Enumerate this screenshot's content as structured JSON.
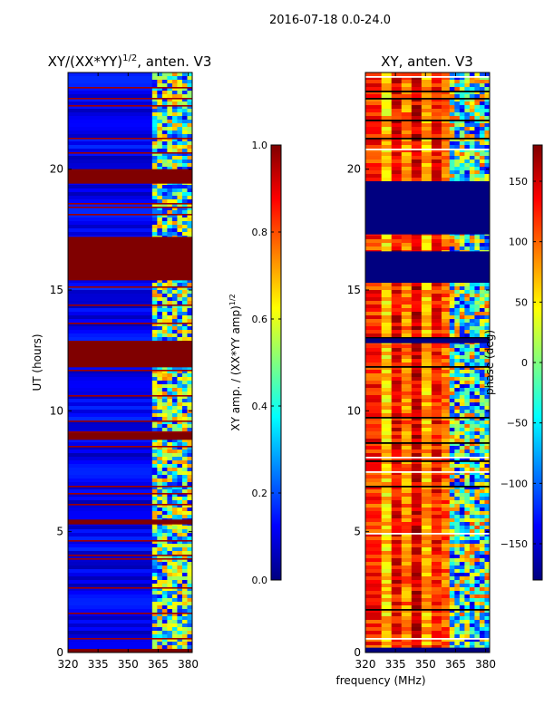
{
  "figure": {
    "suptitle": "2016-07-18 0.0-24.0",
    "shared_xlabel": "frequency (MHz)"
  },
  "chart_data": [
    {
      "type": "heatmap",
      "title_main": "XY/(XX*YY)",
      "title_sup": "1/2",
      "title_tail": ", anten. V3",
      "xlabel": "",
      "ylabel": "UT (hours)",
      "xlim": [
        320,
        382
      ],
      "ylim": [
        0,
        24
      ],
      "xticks": [
        320,
        335,
        350,
        365,
        380
      ],
      "yticks": [
        0,
        5,
        10,
        15,
        20
      ],
      "colorbar": {
        "label_main": "XY amp. / (XX*YY amp)",
        "label_sup": "1/2",
        "range": [
          0.0,
          1.0
        ],
        "ticks": [
          "0.0",
          "0.2",
          "0.4",
          "0.6",
          "0.8",
          "1.0"
        ],
        "tick_values": [
          0.0,
          0.2,
          0.4,
          0.6,
          0.8,
          1.0
        ],
        "colormap": "jet"
      },
      "saturated_bands_ut": [
        [
          19.4,
          20.0
        ],
        [
          16.8,
          17.2
        ],
        [
          15.4,
          16.8
        ],
        [
          11.8,
          12.9
        ],
        [
          8.8,
          9.1
        ],
        [
          5.3,
          5.5
        ],
        [
          0.0,
          0.15
        ]
      ],
      "bright_region_mhz": [
        362,
        382
      ],
      "background_value": 0.1,
      "bright_value": 0.5
    },
    {
      "type": "heatmap",
      "title_main": "XY, anten. V3",
      "xlabel": "frequency (MHz)",
      "ylabel": "",
      "xlim": [
        320,
        382
      ],
      "ylim": [
        0,
        24
      ],
      "xticks": [
        320,
        335,
        350,
        365,
        380
      ],
      "yticks": [
        0,
        5,
        10,
        15,
        20
      ],
      "colorbar": {
        "label_main": "phase (deg)",
        "range": [
          -180,
          180
        ],
        "ticks": [
          "−150",
          "−100",
          "−50",
          "0",
          "50",
          "100",
          "150"
        ],
        "tick_values": [
          -150,
          -100,
          -50,
          0,
          50,
          100,
          150
        ],
        "colormap": "jet"
      },
      "masked_bands_ut": [
        [
          17.3,
          19.5
        ],
        [
          15.3,
          16.6
        ],
        [
          12.8,
          13.0
        ],
        [
          0.0,
          0.2
        ]
      ],
      "phase_stripes_mhz": [
        {
          "from": 320,
          "to": 328,
          "value": 120
        },
        {
          "from": 328,
          "to": 333,
          "value": 60
        },
        {
          "from": 333,
          "to": 338,
          "value": 140
        },
        {
          "from": 338,
          "to": 343,
          "value": 90
        },
        {
          "from": 343,
          "to": 348,
          "value": 150
        },
        {
          "from": 348,
          "to": 353,
          "value": 70
        },
        {
          "from": 353,
          "to": 358,
          "value": 130
        },
        {
          "from": 358,
          "to": 362,
          "value": 100
        },
        {
          "from": 362,
          "to": 382,
          "value": -20
        }
      ]
    }
  ]
}
